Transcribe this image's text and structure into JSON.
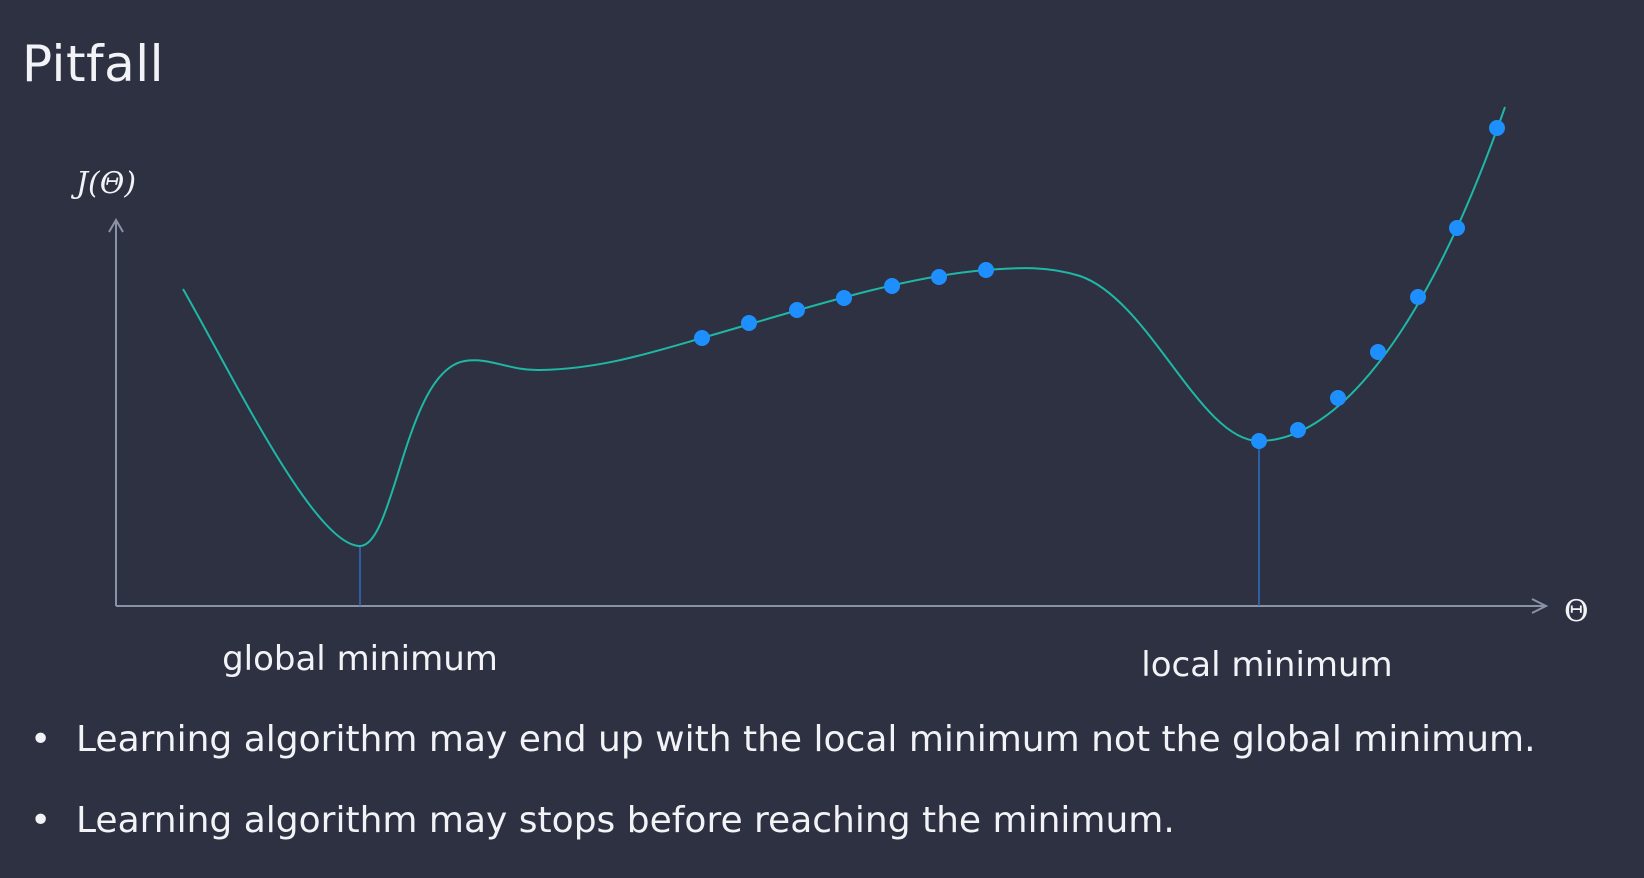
{
  "slide": {
    "title": "Pitfall"
  },
  "diagram": {
    "y_axis_label": "J(Θ)",
    "x_axis_label": "Θ",
    "global_minimum_label": "global minimum",
    "local_minimum_label": "local minimum",
    "colors": {
      "background": "#2d3142",
      "axis": "#8a93a6",
      "curve": "#1fb7a6",
      "points": "#1e8fff",
      "drop_lines": "#2f6fc6",
      "text": "#f2f3f6"
    }
  },
  "bullets": {
    "marker": "•",
    "items": [
      "Learning algorithm may end up with the local minimum not the global minimum.",
      "Learning algorithm may stops before reaching the minimum."
    ]
  }
}
